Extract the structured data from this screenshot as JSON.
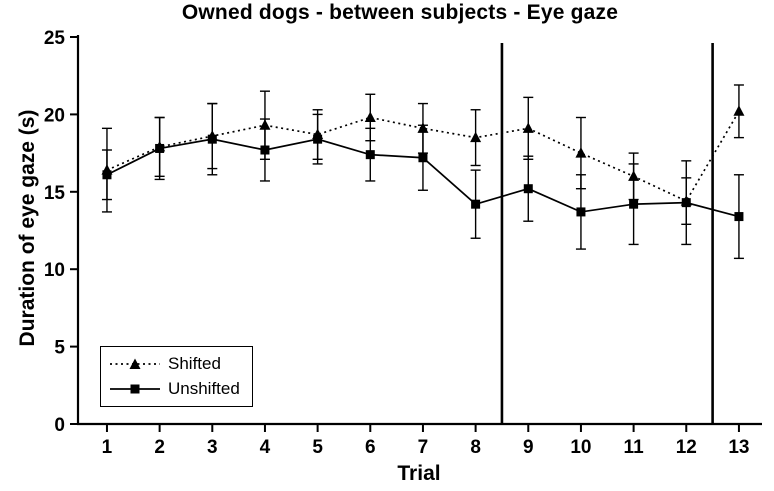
{
  "chart_data": {
    "type": "line",
    "title": "Owned dogs - between subjects - Eye gaze",
    "xlabel": "Trial",
    "ylabel": "Duration of eye gaze (s)",
    "x": [
      1,
      2,
      3,
      4,
      5,
      6,
      7,
      8,
      9,
      10,
      11,
      12,
      13
    ],
    "ylim": [
      0,
      25
    ],
    "yticks": [
      0,
      5,
      10,
      15,
      20,
      25
    ],
    "vertical_lines": [
      8.5,
      12.5
    ],
    "legend_position": "lower-left",
    "grid": false,
    "error_bars": true,
    "series": [
      {
        "name": "Shifted",
        "marker": "triangle",
        "line_style": "dotted",
        "values": [
          16.4,
          17.9,
          18.6,
          19.3,
          18.7,
          19.8,
          19.1,
          18.5,
          19.1,
          17.5,
          16.0,
          14.4,
          20.2
        ],
        "errors": [
          2.7,
          1.9,
          2.1,
          2.2,
          1.6,
          1.5,
          1.6,
          1.8,
          2.0,
          2.3,
          1.5,
          1.5,
          1.7
        ]
      },
      {
        "name": "Unshifted",
        "marker": "square",
        "line_style": "solid",
        "values": [
          16.1,
          17.8,
          18.4,
          17.7,
          18.4,
          17.4,
          17.2,
          14.2,
          15.2,
          13.7,
          14.2,
          14.3,
          13.4
        ],
        "errors": [
          1.6,
          2.0,
          2.3,
          2.0,
          1.6,
          1.7,
          2.1,
          2.2,
          2.1,
          2.4,
          2.6,
          2.7,
          2.7
        ]
      }
    ],
    "colors": {
      "line": "#000000",
      "background": "#ffffff"
    }
  }
}
